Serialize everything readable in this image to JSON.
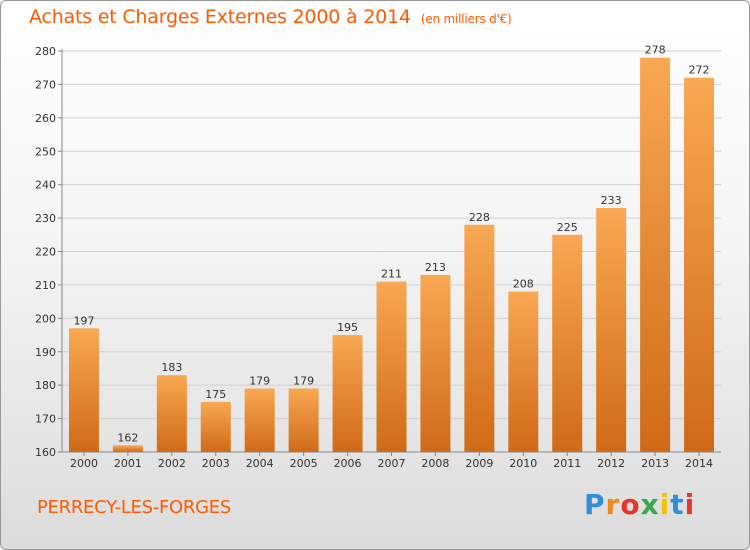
{
  "header": {
    "title": "Achats et Charges Externes 2000 à 2014",
    "unit": "(en milliers d'€)"
  },
  "commune": "PERRECY-LES-FORGES",
  "logo": {
    "text": "Proxiti",
    "letter_colors": [
      "#2f8fd8",
      "#f08a1c",
      "#e8342a",
      "#3aa84a",
      "#f2c400",
      "#2f8fd8",
      "#e8342a"
    ]
  },
  "colors": {
    "accent": "#ff5a00",
    "bar_light": "#f7a24e",
    "bar_dark": "#d8701c",
    "grid": "#d0d0d0"
  },
  "chart_data": {
    "type": "bar",
    "categories": [
      "2000",
      "2001",
      "2002",
      "2003",
      "2004",
      "2005",
      "2006",
      "2007",
      "2008",
      "2009",
      "2010",
      "2011",
      "2012",
      "2013",
      "2014"
    ],
    "values": [
      197,
      162,
      183,
      175,
      179,
      179,
      195,
      211,
      213,
      228,
      208,
      225,
      233,
      278,
      272
    ],
    "title": "Achats et Charges Externes 2000 à 2014",
    "subtitle": "(en milliers d'€)",
    "xlabel": "",
    "ylabel": "",
    "ylim": [
      160,
      280
    ],
    "yticks": [
      160,
      170,
      180,
      190,
      200,
      210,
      220,
      230,
      240,
      250,
      260,
      270,
      280
    ],
    "grid": true,
    "legend": "none"
  }
}
